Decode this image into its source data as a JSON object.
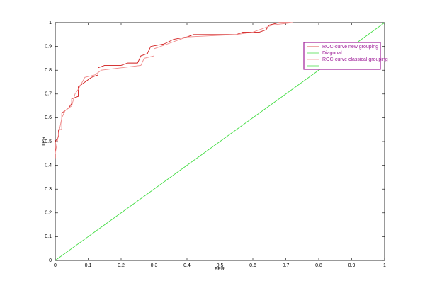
{
  "chart_data": {
    "type": "line",
    "x_label": "FPR",
    "y_label": "TPR",
    "xlim": [
      0,
      1
    ],
    "ylim": [
      0,
      1
    ],
    "xticks": [
      0,
      0.1,
      0.2,
      0.3,
      0.4,
      0.5,
      0.6,
      0.7,
      0.8,
      0.9,
      1
    ],
    "yticks": [
      0,
      0.1,
      0.2,
      0.3,
      0.4,
      0.5,
      0.6,
      0.7,
      0.8,
      0.9,
      1
    ],
    "grid": false,
    "legend": "upper right",
    "series": [
      {
        "name": "ROC-curve new grouping",
        "color": "#d11a1a",
        "x": [
          0,
          0,
          0.01,
          0.01,
          0.02,
          0.02,
          0.03,
          0.04,
          0.05,
          0.05,
          0.07,
          0.07,
          0.09,
          0.1,
          0.11,
          0.13,
          0.13,
          0.15,
          0.2,
          0.22,
          0.25,
          0.26,
          0.28,
          0.29,
          0.33,
          0.36,
          0.4,
          0.42,
          0.5,
          0.55,
          0.57,
          0.62,
          0.64,
          0.65,
          0.68,
          0.72
        ],
        "values": [
          0.43,
          0.5,
          0.52,
          0.55,
          0.55,
          0.62,
          0.63,
          0.64,
          0.66,
          0.68,
          0.69,
          0.73,
          0.75,
          0.76,
          0.77,
          0.78,
          0.81,
          0.82,
          0.82,
          0.83,
          0.83,
          0.86,
          0.87,
          0.9,
          0.91,
          0.93,
          0.94,
          0.95,
          0.95,
          0.95,
          0.96,
          0.96,
          0.97,
          0.99,
          1.0,
          1.0
        ]
      },
      {
        "name": "Diagonal",
        "color": "#44dd44",
        "x": [
          0,
          1
        ],
        "values": [
          0,
          1
        ]
      },
      {
        "name": "ROC-curve classical grouping",
        "color": "#f08a8a",
        "x": [
          0,
          0.01,
          0.02,
          0.03,
          0.05,
          0.06,
          0.07,
          0.09,
          0.12,
          0.14,
          0.2,
          0.26,
          0.27,
          0.3,
          0.3,
          0.34,
          0.4,
          0.55,
          0.6,
          0.64,
          0.66,
          0.72
        ],
        "values": [
          0.45,
          0.53,
          0.6,
          0.63,
          0.65,
          0.7,
          0.72,
          0.77,
          0.78,
          0.8,
          0.81,
          0.82,
          0.85,
          0.86,
          0.89,
          0.91,
          0.94,
          0.95,
          0.96,
          0.98,
          0.99,
          1.0
        ]
      }
    ]
  }
}
